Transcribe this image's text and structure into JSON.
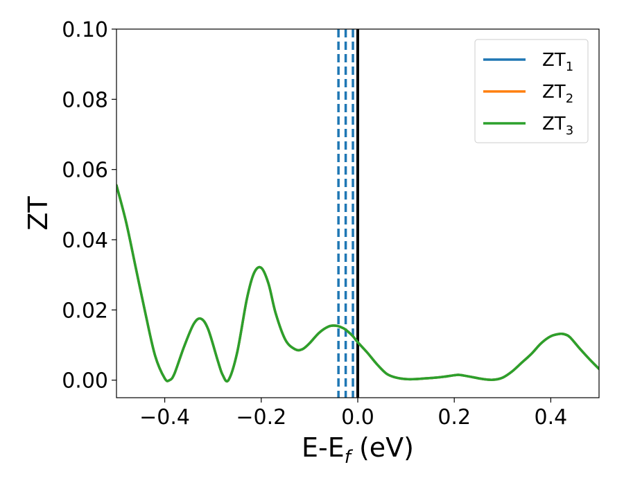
{
  "chart_data": {
    "type": "line",
    "xlabel": "E-E",
    "xlabel_sub": "f",
    "xlabel_unit": " (eV)",
    "ylabel": "ZT",
    "xlim": [
      -0.5,
      0.5
    ],
    "ylim": [
      -0.005,
      0.1
    ],
    "xticks": [
      -0.4,
      -0.2,
      0.0,
      0.2,
      0.4
    ],
    "xtick_labels": [
      "−0.4",
      "−0.2",
      "0.0",
      "0.2",
      "0.4"
    ],
    "yticks": [
      0.0,
      0.02,
      0.04,
      0.06,
      0.08,
      0.1
    ],
    "ytick_labels": [
      "0.00",
      "0.02",
      "0.04",
      "0.06",
      "0.08",
      "0.10"
    ],
    "grid": false,
    "legend_position": "top-right",
    "vlines": [
      {
        "x": 0.0,
        "style": "solid",
        "color": "#000000"
      },
      {
        "x": -0.01,
        "style": "dashed",
        "color": "#1f77b4"
      },
      {
        "x": -0.025,
        "style": "dashed",
        "color": "#1f77b4"
      },
      {
        "x": -0.04,
        "style": "dashed",
        "color": "#1f77b4"
      }
    ],
    "x": [
      -0.5,
      -0.48,
      -0.46,
      -0.44,
      -0.42,
      -0.4,
      -0.39,
      -0.38,
      -0.36,
      -0.34,
      -0.325,
      -0.31,
      -0.29,
      -0.28,
      -0.268,
      -0.25,
      -0.23,
      -0.215,
      -0.2,
      -0.185,
      -0.17,
      -0.15,
      -0.13,
      -0.115,
      -0.1,
      -0.08,
      -0.06,
      -0.045,
      -0.03,
      -0.02,
      -0.01,
      0.0,
      0.02,
      0.04,
      0.06,
      0.08,
      0.1,
      0.12,
      0.14,
      0.16,
      0.18,
      0.2,
      0.21,
      0.22,
      0.24,
      0.26,
      0.28,
      0.3,
      0.32,
      0.34,
      0.36,
      0.38,
      0.4,
      0.42,
      0.43,
      0.44,
      0.46,
      0.48,
      0.5
    ],
    "series": [
      {
        "name": "ZT",
        "name_sub": "1",
        "color": "#1f77b4",
        "values": [
          0.0555,
          0.045,
          0.032,
          0.019,
          0.007,
          0.0005,
          0.0,
          0.0018,
          0.0095,
          0.016,
          0.0175,
          0.0145,
          0.0055,
          0.0015,
          0.0,
          0.0078,
          0.023,
          0.0305,
          0.032,
          0.0275,
          0.019,
          0.0115,
          0.0088,
          0.0088,
          0.0105,
          0.0135,
          0.0153,
          0.0155,
          0.0148,
          0.0138,
          0.0125,
          0.0108,
          0.0078,
          0.0045,
          0.0018,
          0.0007,
          0.0003,
          0.0003,
          0.0005,
          0.0007,
          0.001,
          0.0014,
          0.0015,
          0.0013,
          0.0008,
          0.0003,
          0.0001,
          0.0007,
          0.0025,
          0.005,
          0.0075,
          0.0105,
          0.0125,
          0.0132,
          0.013,
          0.0122,
          0.009,
          0.006,
          0.0032
        ]
      },
      {
        "name": "ZT",
        "name_sub": "2",
        "color": "#ff7f0e",
        "values": [
          0.0555,
          0.045,
          0.032,
          0.019,
          0.007,
          0.0005,
          0.0,
          0.0018,
          0.0095,
          0.016,
          0.0175,
          0.0145,
          0.0055,
          0.0015,
          0.0,
          0.0078,
          0.023,
          0.0305,
          0.032,
          0.0275,
          0.019,
          0.0115,
          0.0088,
          0.0088,
          0.0105,
          0.0135,
          0.0153,
          0.0155,
          0.0148,
          0.0138,
          0.0125,
          0.0108,
          0.0078,
          0.0045,
          0.0018,
          0.0007,
          0.0003,
          0.0003,
          0.0005,
          0.0007,
          0.001,
          0.0014,
          0.0015,
          0.0013,
          0.0008,
          0.0003,
          0.0001,
          0.0007,
          0.0025,
          0.005,
          0.0075,
          0.0105,
          0.0125,
          0.0132,
          0.013,
          0.0122,
          0.009,
          0.006,
          0.0032
        ]
      },
      {
        "name": "ZT",
        "name_sub": "3",
        "color": "#2ca02c",
        "values": [
          0.0555,
          0.045,
          0.032,
          0.019,
          0.007,
          0.0005,
          0.0,
          0.0018,
          0.0095,
          0.016,
          0.0175,
          0.0145,
          0.0055,
          0.0015,
          0.0,
          0.0078,
          0.023,
          0.0305,
          0.032,
          0.0275,
          0.019,
          0.0115,
          0.0088,
          0.0088,
          0.0105,
          0.0135,
          0.0153,
          0.0155,
          0.0148,
          0.0138,
          0.0125,
          0.0108,
          0.0078,
          0.0045,
          0.0018,
          0.0007,
          0.0003,
          0.0003,
          0.0005,
          0.0007,
          0.001,
          0.0014,
          0.0015,
          0.0013,
          0.0008,
          0.0003,
          0.0001,
          0.0007,
          0.0025,
          0.005,
          0.0075,
          0.0105,
          0.0125,
          0.0132,
          0.013,
          0.0122,
          0.009,
          0.006,
          0.0032
        ]
      }
    ]
  }
}
